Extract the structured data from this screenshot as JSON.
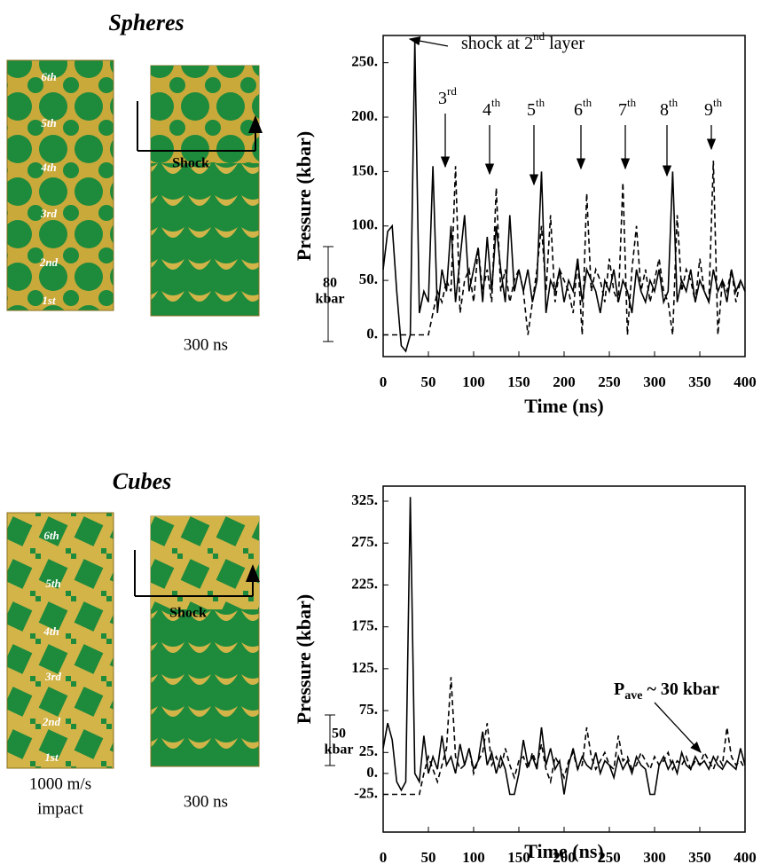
{
  "illustrations": [
    {
      "title": "Spheres",
      "layer_labels": [
        "6th",
        "5th",
        "4th",
        "3rd",
        "2nd",
        "1st"
      ],
      "shock_label": "Shock",
      "time_label": "300 ns",
      "scale_value": "80",
      "scale_unit": "kbar"
    },
    {
      "title": "Cubes",
      "layer_labels": [
        "6th",
        "5th",
        "4th",
        "3rd",
        "2nd",
        "1st"
      ],
      "shock_label": "Shock",
      "time_label": "300 ns",
      "impact_speed": "1000 m/s",
      "impact_word": "impact",
      "scale_value": "50",
      "scale_unit": "kbar"
    }
  ],
  "chart_data": [
    {
      "type": "line",
      "xlabel": "Time (ns)",
      "ylabel": "Pressure (kbar)",
      "xlim": [
        0,
        400
      ],
      "ylim": [
        -20,
        275
      ],
      "xticks": [
        0,
        50,
        100,
        150,
        200,
        250,
        300,
        350,
        400
      ],
      "yticks": [
        {
          "value": 0,
          "label": "0."
        },
        {
          "value": 50,
          "label": "50."
        },
        {
          "value": 100,
          "label": "100."
        },
        {
          "value": 150,
          "label": "150."
        },
        {
          "value": 200,
          "label": "200."
        },
        {
          "value": 250,
          "label": "250."
        }
      ],
      "grid": false,
      "shock_label": {
        "text": "shock at 2",
        "sup": "nd",
        "tail": " layer"
      },
      "layer_labels": [
        {
          "text": "3",
          "sup": "rd"
        },
        {
          "text": "4",
          "sup": "th"
        },
        {
          "text": "5",
          "sup": "th"
        },
        {
          "text": "6",
          "sup": "th"
        },
        {
          "text": "7",
          "sup": "th"
        },
        {
          "text": "8",
          "sup": "th"
        },
        {
          "text": "9",
          "sup": "th"
        }
      ],
      "x": [
        0,
        5,
        10,
        15,
        20,
        25,
        30,
        35,
        40,
        45,
        50,
        55,
        60,
        65,
        70,
        75,
        80,
        85,
        90,
        95,
        100,
        105,
        110,
        115,
        120,
        125,
        130,
        135,
        140,
        145,
        150,
        155,
        160,
        165,
        170,
        175,
        180,
        185,
        190,
        195,
        200,
        205,
        210,
        215,
        220,
        225,
        230,
        235,
        240,
        245,
        250,
        255,
        260,
        265,
        270,
        275,
        280,
        285,
        290,
        295,
        300,
        305,
        310,
        315,
        320,
        325,
        330,
        335,
        340,
        345,
        350,
        355,
        360,
        365,
        370,
        375,
        380,
        385,
        390,
        395,
        400
      ],
      "series": [
        {
          "color": "#000000",
          "dash": "solid",
          "values": [
            60,
            95,
            100,
            40,
            -10,
            -15,
            0,
            270,
            20,
            40,
            30,
            155,
            20,
            60,
            40,
            100,
            30,
            70,
            110,
            40,
            60,
            80,
            30,
            90,
            40,
            100,
            60,
            30,
            110,
            40,
            60,
            40,
            60,
            30,
            50,
            150,
            20,
            50,
            40,
            60,
            30,
            50,
            40,
            70,
            30,
            60,
            50,
            40,
            20,
            50,
            40,
            60,
            30,
            50,
            40,
            20,
            60,
            40,
            30,
            50,
            40,
            60,
            30,
            40,
            150,
            30,
            50,
            40,
            60,
            30,
            50,
            40,
            30,
            60,
            40,
            50,
            30,
            60,
            40,
            50,
            40
          ]
        },
        {
          "color": "#000000",
          "dash": "dashed",
          "values": [
            0,
            0,
            0,
            0,
            0,
            0,
            0,
            0,
            0,
            0,
            0,
            20,
            40,
            30,
            50,
            40,
            155,
            20,
            50,
            60,
            30,
            80,
            40,
            60,
            30,
            135,
            40,
            60,
            30,
            50,
            60,
            40,
            0,
            30,
            60,
            100,
            40,
            110,
            30,
            60,
            50,
            40,
            20,
            70,
            0,
            130,
            40,
            60,
            50,
            30,
            70,
            40,
            30,
            140,
            0,
            60,
            100,
            40,
            60,
            30,
            50,
            70,
            40,
            30,
            0,
            110,
            40,
            60,
            50,
            30,
            70,
            40,
            30,
            160,
            0,
            50,
            40,
            60,
            30,
            50,
            40
          ]
        }
      ]
    },
    {
      "type": "line",
      "xlabel": "Time (ns)",
      "ylabel": "Pressure (kbar)",
      "xlim": [
        0,
        400
      ],
      "ylim": [
        -70,
        343
      ],
      "xticks": [
        0,
        50,
        100,
        150,
        200,
        250,
        300,
        350,
        400
      ],
      "yticks": [
        {
          "value": -25,
          "label": "-25."
        },
        {
          "value": 0,
          "label": "0."
        },
        {
          "value": 25,
          "label": "25."
        },
        {
          "value": 75,
          "label": "75."
        },
        {
          "value": 125,
          "label": "125."
        },
        {
          "value": 175,
          "label": "175."
        },
        {
          "value": 225,
          "label": "225."
        },
        {
          "value": 275,
          "label": "275."
        },
        {
          "value": 325,
          "label": "325."
        }
      ],
      "grid": false,
      "average_label": {
        "text": "P",
        "sub": "ave",
        "tail": " ~ 30 kbar"
      },
      "x": [
        0,
        5,
        10,
        15,
        20,
        25,
        30,
        35,
        40,
        45,
        50,
        55,
        60,
        65,
        70,
        75,
        80,
        85,
        90,
        95,
        100,
        105,
        110,
        115,
        120,
        125,
        130,
        135,
        140,
        145,
        150,
        155,
        160,
        165,
        170,
        175,
        180,
        185,
        190,
        195,
        200,
        205,
        210,
        215,
        220,
        225,
        230,
        235,
        240,
        245,
        250,
        255,
        260,
        265,
        270,
        275,
        280,
        285,
        290,
        295,
        300,
        305,
        310,
        315,
        320,
        325,
        330,
        335,
        340,
        345,
        350,
        355,
        360,
        365,
        370,
        375,
        380,
        385,
        390,
        395,
        400
      ],
      "series": [
        {
          "color": "#000000",
          "dash": "solid",
          "values": [
            30,
            60,
            40,
            -10,
            -20,
            -10,
            330,
            0,
            -10,
            45,
            0,
            20,
            5,
            45,
            10,
            20,
            0,
            35,
            10,
            30,
            5,
            15,
            50,
            10,
            25,
            0,
            20,
            5,
            -25,
            -25,
            0,
            40,
            10,
            20,
            5,
            55,
            10,
            30,
            5,
            15,
            -25,
            10,
            30,
            5,
            20,
            10,
            5,
            25,
            0,
            15,
            10,
            -5,
            20,
            5,
            15,
            0,
            20,
            10,
            5,
            -25,
            -25,
            10,
            20,
            5,
            15,
            0,
            25,
            10,
            5,
            20,
            10,
            15,
            5,
            20,
            10,
            5,
            15,
            10,
            5,
            30,
            10
          ]
        },
        {
          "color": "#000000",
          "dash": "dashed",
          "values": [
            -25,
            -25,
            -25,
            -25,
            -25,
            -25,
            -25,
            -25,
            -25,
            0,
            20,
            5,
            -10,
            10,
            30,
            115,
            20,
            5,
            10,
            30,
            0,
            15,
            25,
            60,
            10,
            20,
            5,
            30,
            10,
            -5,
            15,
            20,
            5,
            25,
            10,
            35,
            5,
            -10,
            20,
            10,
            -5,
            15,
            25,
            5,
            10,
            55,
            20,
            5,
            15,
            25,
            10,
            5,
            45,
            15,
            20,
            5,
            10,
            25,
            15,
            5,
            20,
            10,
            15,
            25,
            5,
            15,
            10,
            20,
            5,
            15,
            10,
            25,
            15,
            5,
            20,
            10,
            55,
            20,
            10,
            15,
            5
          ]
        }
      ]
    }
  ]
}
